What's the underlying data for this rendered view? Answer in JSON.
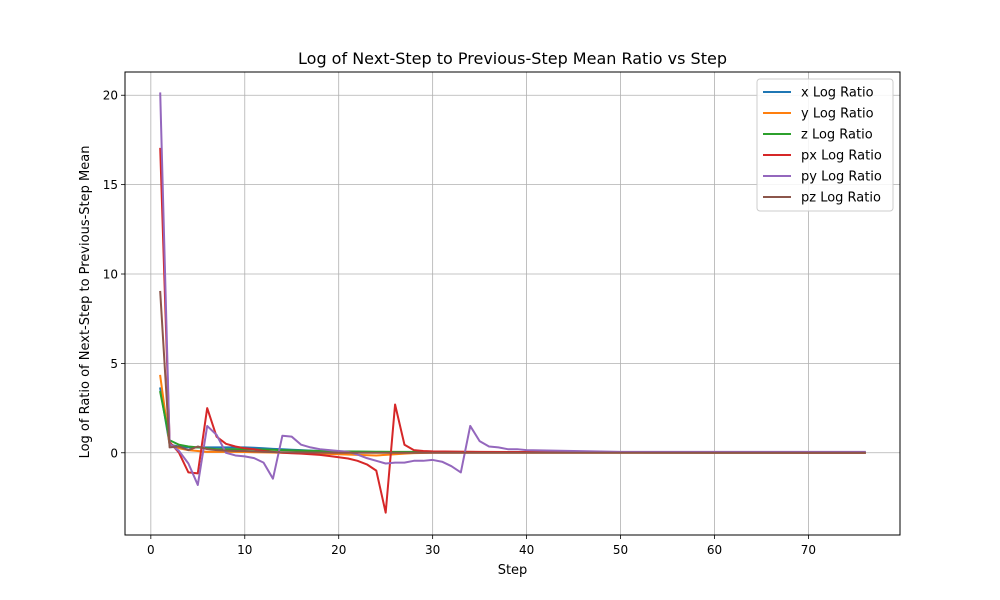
{
  "chart_data": {
    "type": "line",
    "title": "Log of Next-Step to Previous-Step Mean Ratio vs Step",
    "xlabel": "Step",
    "ylabel": "Log of Ratio of Next-Step to Previous-Step Mean",
    "xlim": [
      -2.75,
      79.75
    ],
    "ylim": [
      -4.6,
      21.3
    ],
    "xticks": [
      0,
      10,
      20,
      30,
      40,
      50,
      60,
      70
    ],
    "yticks": [
      0,
      5,
      10,
      15,
      20
    ],
    "grid": true,
    "legend_position": "top-right",
    "series": [
      {
        "name": "x Log Ratio",
        "color": "#1f77b4",
        "points": [
          [
            1,
            3.6
          ],
          [
            2,
            0.45
          ],
          [
            3,
            0.35
          ],
          [
            4,
            0.3
          ],
          [
            5,
            0.3
          ],
          [
            6,
            0.3
          ],
          [
            7,
            0.3
          ],
          [
            8,
            0.3
          ],
          [
            9,
            0.3
          ],
          [
            10,
            0.3
          ],
          [
            11,
            0.28
          ],
          [
            12,
            0.25
          ],
          [
            13,
            0.22
          ],
          [
            14,
            0.2
          ],
          [
            15,
            0.17
          ],
          [
            16,
            0.15
          ],
          [
            17,
            0.12
          ],
          [
            18,
            0.1
          ],
          [
            19,
            0.08
          ],
          [
            20,
            0.06
          ],
          [
            22,
            0.05
          ],
          [
            24,
            0.04
          ],
          [
            26,
            0.03
          ],
          [
            28,
            0.03
          ],
          [
            30,
            0.03
          ],
          [
            35,
            0.03
          ],
          [
            40,
            0.02
          ],
          [
            50,
            0.01
          ],
          [
            60,
            0.01
          ],
          [
            70,
            0.01
          ],
          [
            76,
            0.01
          ]
        ]
      },
      {
        "name": "y Log Ratio",
        "color": "#ff7f0e",
        "points": [
          [
            1,
            4.3
          ],
          [
            2,
            0.45
          ],
          [
            3,
            0.25
          ],
          [
            4,
            0.15
          ],
          [
            5,
            0.1
          ],
          [
            6,
            0.05
          ],
          [
            7,
            0.05
          ],
          [
            8,
            0.05
          ],
          [
            9,
            0.05
          ],
          [
            10,
            0.04
          ],
          [
            12,
            0.02
          ],
          [
            14,
            0.0
          ],
          [
            16,
            -0.02
          ],
          [
            18,
            -0.05
          ],
          [
            20,
            -0.08
          ],
          [
            22,
            -0.12
          ],
          [
            24,
            -0.15
          ],
          [
            25,
            -0.12
          ],
          [
            26,
            -0.08
          ],
          [
            27,
            -0.05
          ],
          [
            28,
            -0.02
          ],
          [
            30,
            0.0
          ],
          [
            35,
            0.0
          ],
          [
            40,
            0.0
          ],
          [
            50,
            0.0
          ],
          [
            60,
            0.0
          ],
          [
            70,
            0.0
          ],
          [
            76,
            0.0
          ]
        ]
      },
      {
        "name": "z Log Ratio",
        "color": "#2ca02c",
        "points": [
          [
            1,
            3.4
          ],
          [
            2,
            0.7
          ],
          [
            3,
            0.45
          ],
          [
            4,
            0.35
          ],
          [
            5,
            0.3
          ],
          [
            6,
            0.25
          ],
          [
            7,
            0.2
          ],
          [
            8,
            0.2
          ],
          [
            9,
            0.2
          ],
          [
            10,
            0.2
          ],
          [
            12,
            0.18
          ],
          [
            14,
            0.15
          ],
          [
            16,
            0.12
          ],
          [
            18,
            0.1
          ],
          [
            20,
            0.08
          ],
          [
            22,
            0.07
          ],
          [
            24,
            0.06
          ],
          [
            26,
            0.05
          ],
          [
            28,
            0.05
          ],
          [
            30,
            0.05
          ],
          [
            35,
            0.04
          ],
          [
            40,
            0.03
          ],
          [
            50,
            0.02
          ],
          [
            60,
            0.01
          ],
          [
            70,
            0.01
          ],
          [
            76,
            0.01
          ]
        ]
      },
      {
        "name": "px Log Ratio",
        "color": "#d62728",
        "points": [
          [
            1,
            17.0
          ],
          [
            2,
            0.6
          ],
          [
            3,
            0.0
          ],
          [
            4,
            -1.1
          ],
          [
            5,
            -1.15
          ],
          [
            6,
            2.5
          ],
          [
            7,
            0.9
          ],
          [
            8,
            0.5
          ],
          [
            9,
            0.35
          ],
          [
            10,
            0.25
          ],
          [
            11,
            0.2
          ],
          [
            12,
            0.1
          ],
          [
            13,
            0.05
          ],
          [
            14,
            0.0
          ],
          [
            15,
            -0.03
          ],
          [
            16,
            -0.05
          ],
          [
            17,
            -0.08
          ],
          [
            18,
            -0.12
          ],
          [
            19,
            -0.18
          ],
          [
            20,
            -0.25
          ],
          [
            21,
            -0.32
          ],
          [
            22,
            -0.45
          ],
          [
            23,
            -0.65
          ],
          [
            24,
            -1.0
          ],
          [
            25,
            -3.35
          ],
          [
            26,
            2.7
          ],
          [
            27,
            0.45
          ],
          [
            28,
            0.15
          ],
          [
            29,
            0.1
          ],
          [
            30,
            0.08
          ],
          [
            35,
            0.05
          ],
          [
            40,
            0.04
          ],
          [
            50,
            0.02
          ],
          [
            60,
            0.01
          ],
          [
            70,
            0.0
          ],
          [
            76,
            0.0
          ]
        ]
      },
      {
        "name": "py Log Ratio",
        "color": "#9467bd",
        "points": [
          [
            1,
            20.1
          ],
          [
            2,
            0.5
          ],
          [
            3,
            0.1
          ],
          [
            4,
            -0.6
          ],
          [
            5,
            -1.8
          ],
          [
            6,
            1.5
          ],
          [
            7,
            1.0
          ],
          [
            8,
            0.0
          ],
          [
            9,
            -0.15
          ],
          [
            10,
            -0.2
          ],
          [
            11,
            -0.3
          ],
          [
            12,
            -0.55
          ],
          [
            13,
            -1.45
          ],
          [
            14,
            0.95
          ],
          [
            15,
            0.9
          ],
          [
            16,
            0.45
          ],
          [
            17,
            0.3
          ],
          [
            18,
            0.2
          ],
          [
            19,
            0.15
          ],
          [
            20,
            0.1
          ],
          [
            21,
            0.05
          ],
          [
            22,
            -0.1
          ],
          [
            23,
            -0.3
          ],
          [
            24,
            -0.45
          ],
          [
            25,
            -0.6
          ],
          [
            26,
            -0.55
          ],
          [
            27,
            -0.55
          ],
          [
            28,
            -0.45
          ],
          [
            29,
            -0.45
          ],
          [
            30,
            -0.4
          ],
          [
            31,
            -0.5
          ],
          [
            32,
            -0.75
          ],
          [
            33,
            -1.1
          ],
          [
            34,
            1.5
          ],
          [
            35,
            0.65
          ],
          [
            36,
            0.35
          ],
          [
            37,
            0.3
          ],
          [
            38,
            0.2
          ],
          [
            39,
            0.2
          ],
          [
            40,
            0.15
          ],
          [
            45,
            0.1
          ],
          [
            50,
            0.05
          ],
          [
            55,
            0.05
          ],
          [
            60,
            0.05
          ],
          [
            65,
            0.05
          ],
          [
            70,
            0.05
          ],
          [
            76,
            0.05
          ]
        ]
      },
      {
        "name": "pz Log Ratio",
        "color": "#8c564b",
        "points": [
          [
            1,
            9.0
          ],
          [
            2,
            0.3
          ],
          [
            3,
            0.35
          ],
          [
            4,
            0.15
          ],
          [
            5,
            0.35
          ],
          [
            6,
            0.2
          ],
          [
            7,
            0.15
          ],
          [
            8,
            0.12
          ],
          [
            9,
            0.1
          ],
          [
            10,
            0.1
          ],
          [
            12,
            0.05
          ],
          [
            14,
            0.03
          ],
          [
            16,
            0.02
          ],
          [
            18,
            0.01
          ],
          [
            20,
            0.0
          ],
          [
            25,
            0.0
          ],
          [
            30,
            0.0
          ],
          [
            40,
            0.0
          ],
          [
            50,
            0.0
          ],
          [
            60,
            0.0
          ],
          [
            70,
            0.0
          ],
          [
            76,
            0.0
          ]
        ]
      }
    ]
  }
}
